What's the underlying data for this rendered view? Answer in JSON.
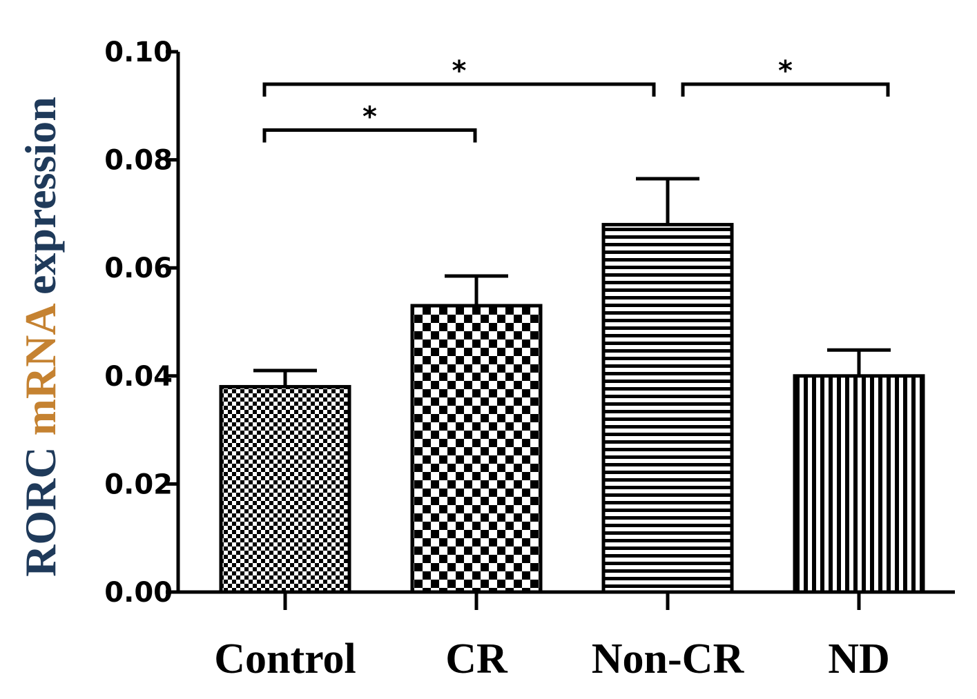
{
  "chart_data": {
    "type": "bar",
    "title": "",
    "xlabel": "",
    "ylabel": "RORC mRNA expression",
    "ylabel_parts": [
      {
        "text": "RORC ",
        "color": "#1f3a5a"
      },
      {
        "text": "mRNA ",
        "color": "#c58231"
      },
      {
        "text": "expression",
        "color": "#1f3a5a"
      }
    ],
    "ylim": [
      0,
      0.1
    ],
    "yticks": [
      "0.00",
      "0.02",
      "0.04",
      "0.06",
      "0.08",
      "0.10"
    ],
    "categories": [
      "Control",
      "CR",
      "Non-CR",
      "ND"
    ],
    "values": [
      0.038,
      0.053,
      0.068,
      0.04
    ],
    "errors": [
      0.003,
      0.0055,
      0.0085,
      0.0048
    ],
    "patterns": [
      "fine-checker",
      "checker",
      "horizontal-lines",
      "vertical-lines"
    ],
    "significance": [
      {
        "from": 0,
        "to": 1,
        "label": "*",
        "level": 0.0855
      },
      {
        "from": 0,
        "to": 2,
        "label": "*",
        "level": 0.094
      },
      {
        "from": 2,
        "to": 3,
        "label": "*",
        "level": 0.094
      }
    ],
    "grid": false,
    "legend": "none"
  }
}
